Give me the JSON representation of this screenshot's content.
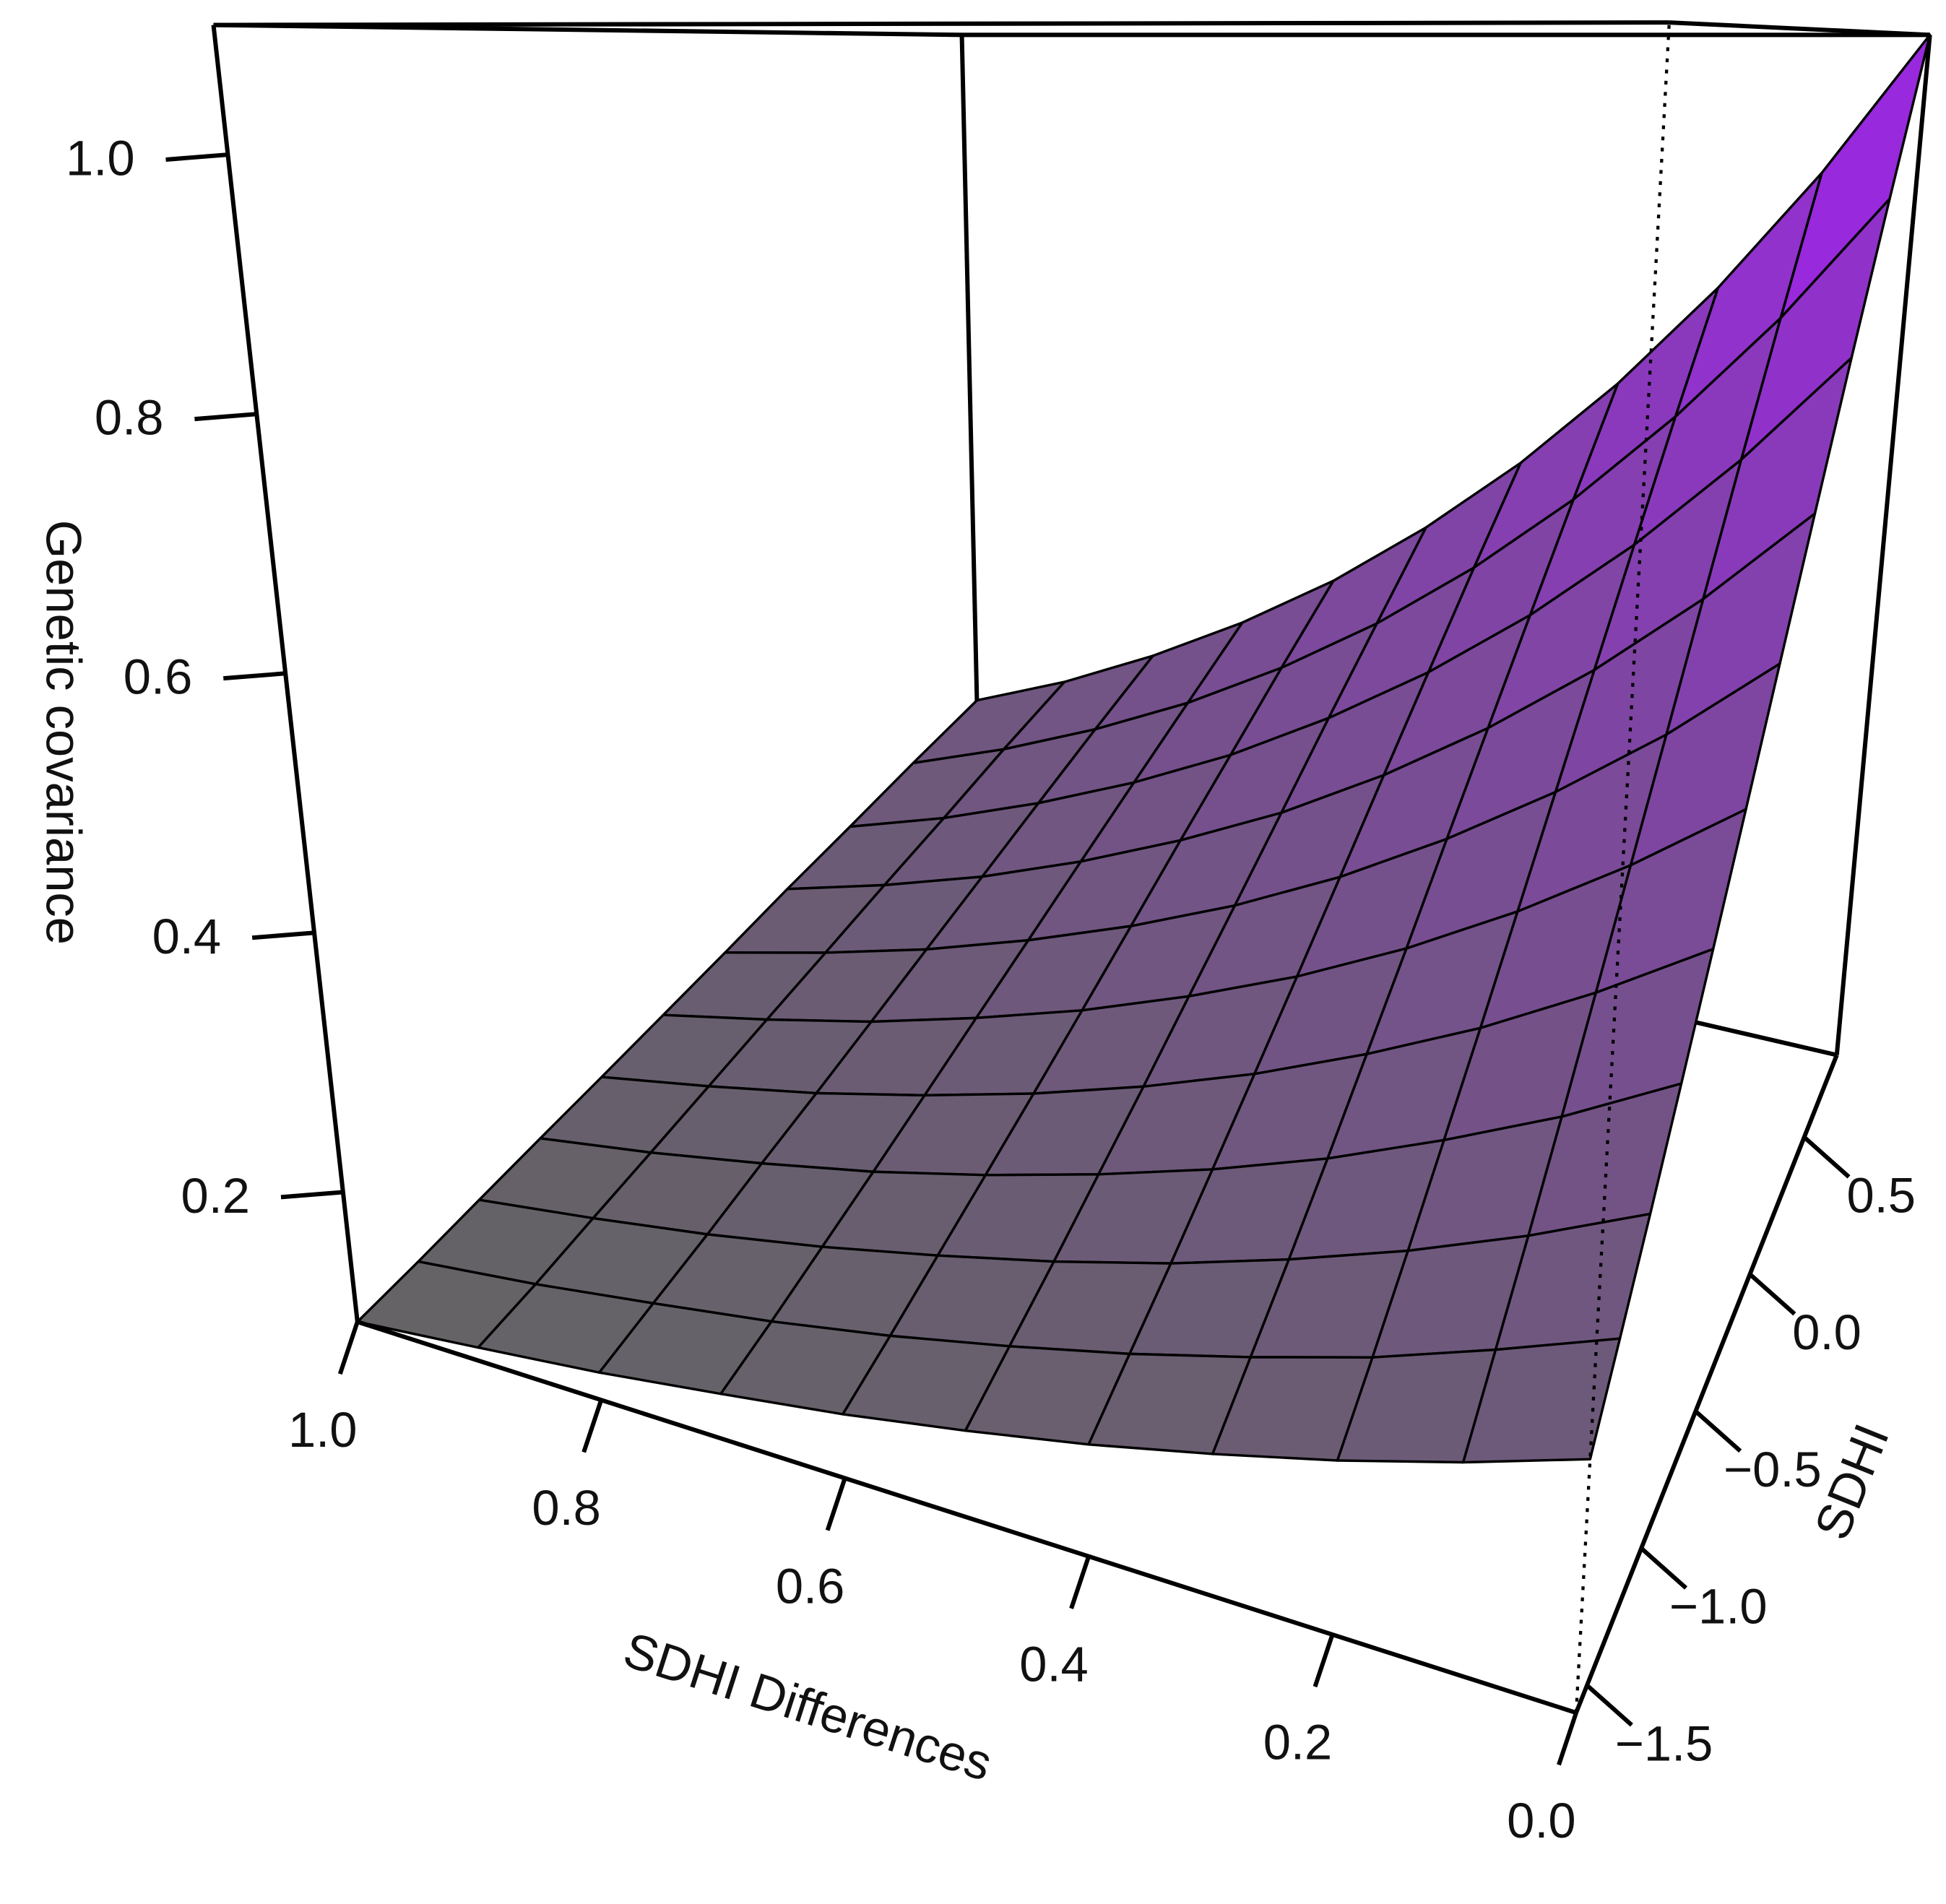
{
  "chart_data": {
    "type": "surface",
    "x_label": "SDHI Differences",
    "y_label": "SDHI",
    "z_label": "Genetic covariance",
    "x": [
      0,
      0.1,
      0.2,
      0.3,
      0.4,
      0.5,
      0.6,
      0.7,
      0.8,
      0.9,
      1
    ],
    "y": [
      -1.6,
      -1.36,
      -1.12,
      -0.88,
      -0.64,
      -0.4,
      -0.16,
      0.08,
      0.32,
      0.56,
      0.8
    ],
    "z": [
      [
        0.25,
        0.228,
        0.208,
        0.19,
        0.173,
        0.158,
        0.144,
        0.132,
        0.12,
        0.11,
        0.1
      ],
      [
        0.29,
        0.264,
        0.239,
        0.218,
        0.198,
        0.18,
        0.163,
        0.148,
        0.135,
        0.122,
        0.111
      ],
      [
        0.336,
        0.304,
        0.275,
        0.249,
        0.225,
        0.204,
        0.185,
        0.167,
        0.151,
        0.137,
        0.124
      ],
      [
        0.39,
        0.351,
        0.317,
        0.285,
        0.257,
        0.232,
        0.209,
        0.188,
        0.17,
        0.153,
        0.138
      ],
      [
        0.452,
        0.406,
        0.364,
        0.327,
        0.293,
        0.263,
        0.236,
        0.212,
        0.19,
        0.171,
        0.153
      ],
      [
        0.524,
        0.469,
        0.419,
        0.374,
        0.334,
        0.299,
        0.267,
        0.239,
        0.213,
        0.191,
        0.17
      ],
      [
        0.608,
        0.541,
        0.482,
        0.429,
        0.381,
        0.339,
        0.302,
        0.269,
        0.239,
        0.213,
        0.189
      ],
      [
        0.705,
        0.625,
        0.554,
        0.491,
        0.435,
        0.385,
        0.342,
        0.303,
        0.268,
        0.238,
        0.211
      ],
      [
        0.818,
        0.722,
        0.637,
        0.562,
        0.496,
        0.438,
        0.386,
        0.341,
        0.301,
        0.265,
        0.234
      ],
      [
        0.948,
        0.833,
        0.733,
        0.644,
        0.566,
        0.497,
        0.437,
        0.384,
        0.338,
        0.297,
        0.261
      ],
      [
        1.1,
        0.962,
        0.842,
        0.737,
        0.645,
        0.565,
        0.494,
        0.433,
        0.379,
        0.331,
        0.29
      ]
    ],
    "xlim": [
      0,
      1
    ],
    "ylim": [
      -1.6,
      0.8
    ],
    "zlim": [
      0.1,
      1.1
    ],
    "xticks": [
      {
        "value": 0,
        "label": "0.0"
      },
      0.2,
      0.4,
      0.6,
      0.8,
      {
        "value": 1,
        "label": "1.0"
      }
    ],
    "yticks": [
      {
        "value": -1.5,
        "label": "−1.5"
      },
      {
        "value": -1,
        "label": "−1.0"
      },
      {
        "value": -0.5,
        "label": "−0.5"
      },
      {
        "value": 0,
        "label": "0.0"
      },
      0.5
    ],
    "zticks": [
      0.2,
      0.4,
      0.6,
      0.8,
      {
        "value": 1,
        "label": "1.0"
      }
    ],
    "colors": [
      "#646464",
      "#a020f0"
    ]
  }
}
